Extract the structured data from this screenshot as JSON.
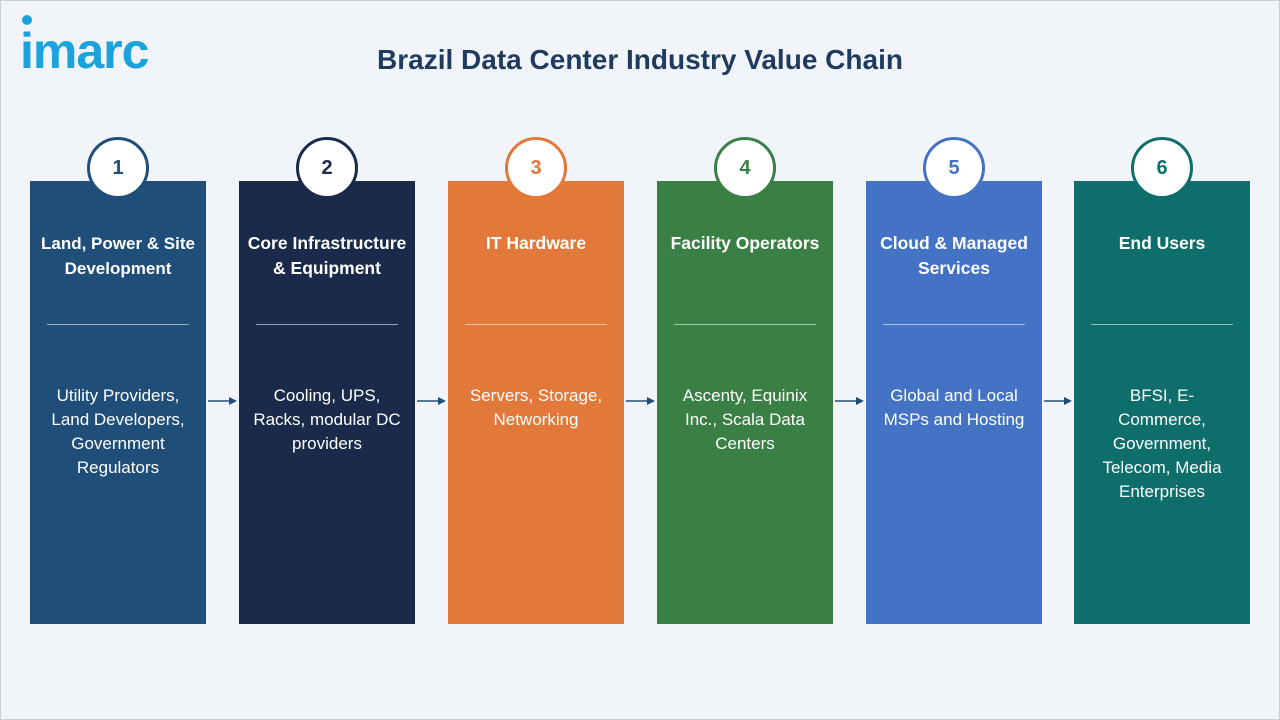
{
  "brand": {
    "logo_text": "imarc"
  },
  "title": "Brazil Data Center Industry Value Chain",
  "stages": [
    {
      "number": "1",
      "title": "Land, Power & Site Development",
      "description": "Utility Providers, Land Developers, Government Regulators",
      "color": "#1f4e79",
      "number_color": "#1f4e79"
    },
    {
      "number": "2",
      "title": "Core Infrastructure & Equipment",
      "description": "Cooling, UPS, Racks, modular DC providers",
      "color": "#1a2a4a",
      "number_color": "#1a2a4a"
    },
    {
      "number": "3",
      "title": "IT Hardware",
      "description": "Servers, Storage, Networking",
      "color": "#e2783a",
      "number_color": "#e2783a"
    },
    {
      "number": "4",
      "title": "Facility Operators",
      "description": "Ascenty, Equinix Inc., Scala Data Centers",
      "color": "#3a8044",
      "number_color": "#3a8044"
    },
    {
      "number": "5",
      "title": "Cloud & Managed Services",
      "description": "Global and Local MSPs and Hosting",
      "color": "#4472c4",
      "number_color": "#4472c4"
    },
    {
      "number": "6",
      "title": "End Users",
      "description": "BFSI, E-Commerce, Government, Telecom, Media Enterprises",
      "color": "#0e6e6b",
      "number_color": "#0e6e6b"
    }
  ],
  "arrow_color": "#1f4e79"
}
